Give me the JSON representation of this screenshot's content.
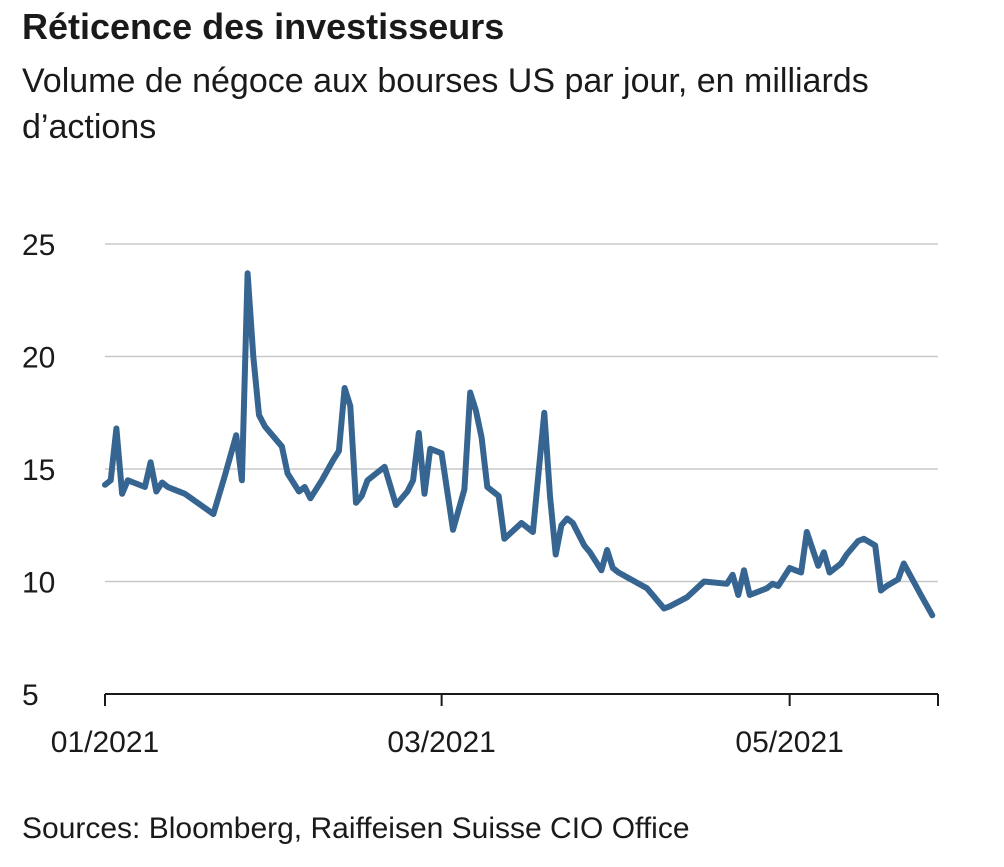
{
  "title": "Réticence des investisseurs",
  "subtitle": "Volume de négoce aux bourses US par jour, en milliards d’actions",
  "source": "Sources: Bloomberg, Raiffeisen Suisse CIO Office",
  "colors": {
    "series": "#366591",
    "grid": "#c8c8c8",
    "axis": "#1a1a1a"
  },
  "chart_data": {
    "type": "line",
    "xlabel": "",
    "ylabel": "",
    "ylim": [
      5,
      25
    ],
    "xlim": [
      "2021-01-01",
      "2021-05-27"
    ],
    "y_ticks": [
      5,
      10,
      15,
      20,
      25
    ],
    "x_ticks": [
      {
        "value": "2021-01-01",
        "label": "01/2021"
      },
      {
        "value": "2021-03-01",
        "label": "03/2021"
      },
      {
        "value": "2021-05-01",
        "label": "05/2021"
      }
    ],
    "grid": true,
    "legend": "none",
    "series": [
      {
        "x": [
          "2021-01-01",
          "2021-01-02",
          "2021-01-03",
          "2021-01-04",
          "2021-01-05",
          "2021-01-06",
          "2021-01-08",
          "2021-01-09",
          "2021-01-10",
          "2021-01-11",
          "2021-01-12",
          "2021-01-13",
          "2021-01-15",
          "2021-01-20",
          "2021-01-22",
          "2021-01-24",
          "2021-01-25",
          "2021-01-26",
          "2021-01-27",
          "2021-01-28",
          "2021-01-29",
          "2021-02-01",
          "2021-02-02",
          "2021-02-04",
          "2021-02-05",
          "2021-02-06",
          "2021-02-08",
          "2021-02-10",
          "2021-02-11",
          "2021-02-12",
          "2021-02-13",
          "2021-02-14",
          "2021-02-15",
          "2021-02-16",
          "2021-02-19",
          "2021-02-21",
          "2021-02-23",
          "2021-02-24",
          "2021-02-25",
          "2021-02-26",
          "2021-02-27",
          "2021-03-01",
          "2021-03-02",
          "2021-03-03",
          "2021-03-05",
          "2021-03-06",
          "2021-03-07",
          "2021-03-08",
          "2021-03-09",
          "2021-03-11",
          "2021-03-12",
          "2021-03-15",
          "2021-03-16",
          "2021-03-17",
          "2021-03-19",
          "2021-03-20",
          "2021-03-21",
          "2021-03-22",
          "2021-03-23",
          "2021-03-24",
          "2021-03-26",
          "2021-03-27",
          "2021-03-29",
          "2021-03-30",
          "2021-03-31",
          "2021-04-01",
          "2021-04-06",
          "2021-04-07",
          "2021-04-08",
          "2021-04-09",
          "2021-04-10",
          "2021-04-13",
          "2021-04-16",
          "2021-04-20",
          "2021-04-21",
          "2021-04-22",
          "2021-04-23",
          "2021-04-24",
          "2021-04-27",
          "2021-04-28",
          "2021-04-29",
          "2021-05-01",
          "2021-05-02",
          "2021-05-03",
          "2021-05-04",
          "2021-05-06",
          "2021-05-07",
          "2021-05-08",
          "2021-05-10",
          "2021-05-11",
          "2021-05-13",
          "2021-05-14",
          "2021-05-16",
          "2021-05-17",
          "2021-05-18",
          "2021-05-20",
          "2021-05-21",
          "2021-05-24",
          "2021-05-26"
        ],
        "y": [
          14.3,
          14.5,
          16.8,
          13.9,
          14.5,
          14.4,
          14.2,
          15.3,
          14.0,
          14.4,
          14.2,
          14.1,
          13.9,
          13.0,
          14.7,
          16.5,
          14.5,
          23.7,
          20.0,
          17.4,
          16.9,
          16.0,
          14.8,
          14.0,
          14.2,
          13.7,
          14.5,
          15.4,
          15.8,
          18.6,
          17.8,
          13.5,
          13.8,
          14.5,
          15.1,
          13.4,
          14.0,
          14.5,
          16.6,
          13.9,
          15.9,
          15.7,
          14.0,
          12.3,
          14.1,
          18.4,
          17.6,
          16.4,
          14.2,
          13.8,
          11.9,
          12.6,
          12.4,
          12.2,
          17.5,
          13.8,
          11.2,
          12.5,
          12.8,
          12.6,
          11.6,
          11.3,
          10.5,
          11.4,
          10.6,
          10.4,
          9.7,
          9.4,
          9.1,
          8.8,
          8.9,
          9.3,
          10.0,
          9.9,
          10.3,
          9.4,
          10.5,
          9.4,
          9.7,
          9.9,
          9.8,
          10.6,
          10.5,
          10.4,
          12.2,
          10.7,
          11.3,
          10.4,
          10.8,
          11.2,
          11.8,
          11.9,
          11.6,
          9.6,
          9.8,
          10.1,
          10.8,
          9.4,
          8.5
        ]
      }
    ]
  }
}
